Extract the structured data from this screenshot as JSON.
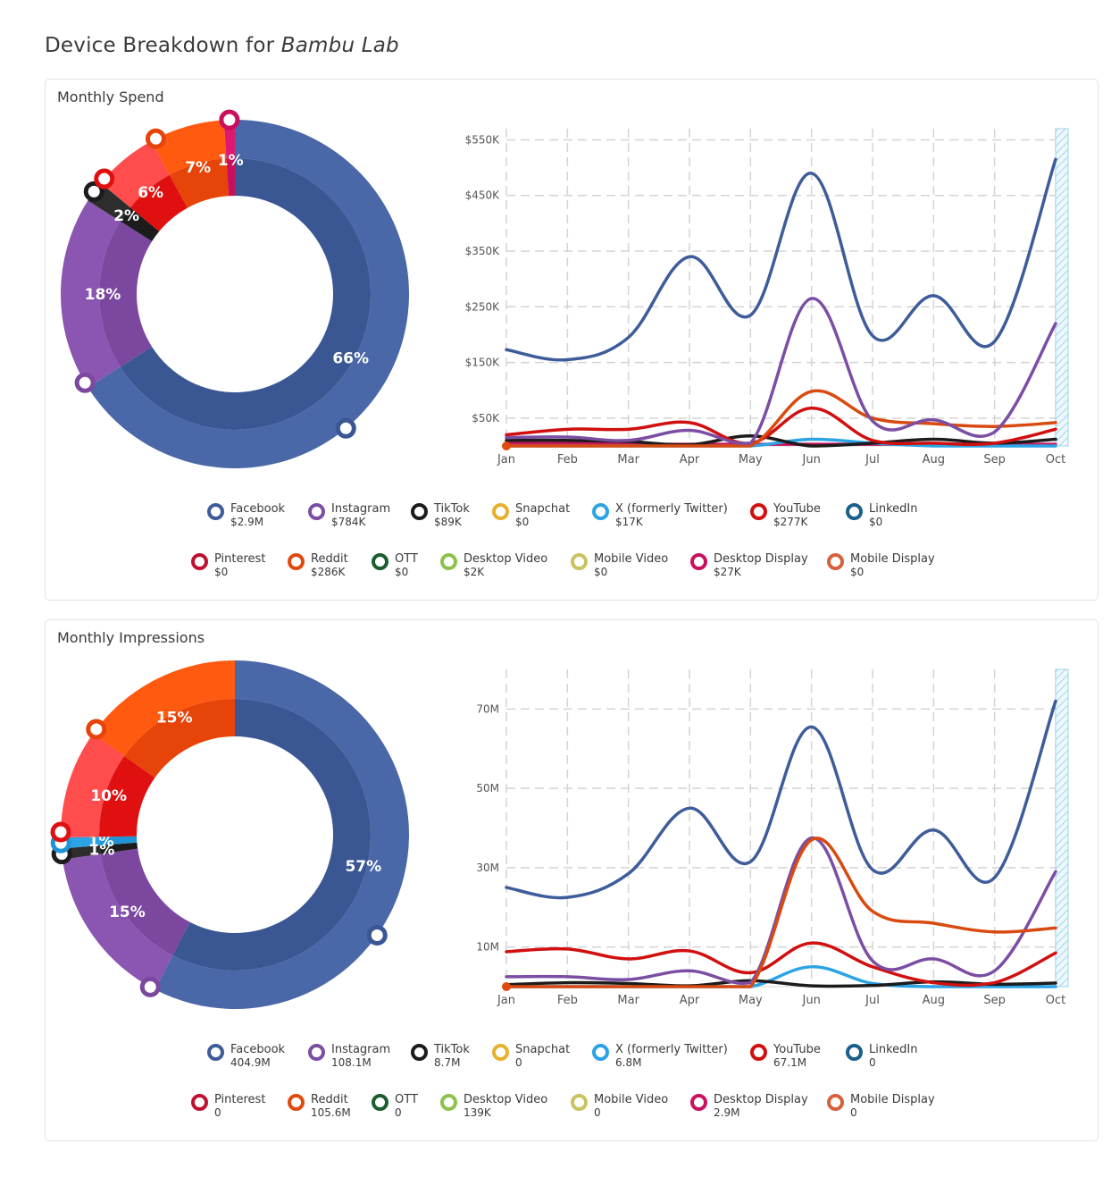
{
  "page": {
    "title_prefix": "Device Breakdown for",
    "brand": "Bambu Lab"
  },
  "months": [
    "Jan",
    "Feb",
    "Mar",
    "Apr",
    "May",
    "Jun",
    "Jul",
    "Aug",
    "Sep",
    "Oct"
  ],
  "channels": [
    {
      "key": "facebook",
      "name": "Facebook",
      "color": "#3e5c9a"
    },
    {
      "key": "instagram",
      "name": "Instagram",
      "color": "#7b4ea3"
    },
    {
      "key": "tiktok",
      "name": "TikTok",
      "color": "#1c1c1c"
    },
    {
      "key": "snapchat",
      "name": "Snapchat",
      "color": "#e7b12d"
    },
    {
      "key": "twitter",
      "name": "X (formerly Twitter)",
      "color": "#2ba3e4"
    },
    {
      "key": "youtube",
      "name": "YouTube",
      "color": "#d10f0f"
    },
    {
      "key": "linkedin",
      "name": "LinkedIn",
      "color": "#1a5f8e"
    },
    {
      "key": "pinterest",
      "name": "Pinterest",
      "color": "#c01030"
    },
    {
      "key": "reddit",
      "name": "Reddit",
      "color": "#e04a0e"
    },
    {
      "key": "ott",
      "name": "OTT",
      "color": "#1a5e2e"
    },
    {
      "key": "desktop_video",
      "name": "Desktop Video",
      "color": "#8cc14c"
    },
    {
      "key": "mobile_video",
      "name": "Mobile Video",
      "color": "#c8c460"
    },
    {
      "key": "desktop_display",
      "name": "Desktop Display",
      "color": "#c9125e"
    },
    {
      "key": "mobile_display",
      "name": "Mobile Display",
      "color": "#d9603c"
    }
  ],
  "spend": {
    "title": "Monthly Spend",
    "legend_values": [
      "$2.9M",
      "$784K",
      "$89K",
      "$0",
      "$17K",
      "$277K",
      "$0",
      "$0",
      "$286K",
      "$0",
      "$2K",
      "$0",
      "$27K",
      "$0"
    ],
    "donut": [
      {
        "channel": "Facebook",
        "pct": 66,
        "label": "66%",
        "color": "#4a68a8",
        "inner_color": "#3a5794"
      },
      {
        "channel": "Instagram",
        "pct": 18,
        "label": "18%",
        "color": "#8b55b2",
        "inner_color": "#7b479f"
      },
      {
        "channel": "TikTok",
        "pct": 2,
        "label": "2%",
        "color": "#2d2d2d",
        "inner_color": "#1c1c1c"
      },
      {
        "channel": "YouTube",
        "pct": 6,
        "label": "6%",
        "color": "#ff4d4d",
        "inner_color": "#e01010"
      },
      {
        "channel": "Reddit",
        "pct": 7,
        "label": "7%",
        "color": "#ff5a10",
        "inner_color": "#e64408"
      },
      {
        "channel": "Desktop Display",
        "pct": 1,
        "label": "1%",
        "color": "#dd1a70",
        "inner_color": "#c70f5e"
      }
    ],
    "chart_data": {
      "type": "line",
      "title": "Monthly Spend",
      "categories": [
        "Jan",
        "Feb",
        "Mar",
        "Apr",
        "May",
        "Jun",
        "Jul",
        "Aug",
        "Sep",
        "Oct"
      ],
      "ylim": [
        0,
        570000
      ],
      "yticks": [
        50000,
        150000,
        250000,
        350000,
        450000,
        550000
      ],
      "ytick_labels": [
        "$50K",
        "$150K",
        "$250K",
        "$350K",
        "$450K",
        "$550K"
      ],
      "series": [
        {
          "name": "Facebook",
          "color": "#3e5c9a",
          "values": [
            173000,
            155000,
            195000,
            340000,
            235000,
            490000,
            198000,
            270000,
            188000,
            515000
          ]
        },
        {
          "name": "Instagram",
          "color": "#7b4ea3",
          "values": [
            15000,
            16000,
            10000,
            28000,
            5000,
            265000,
            45000,
            47000,
            25000,
            220000
          ]
        },
        {
          "name": "Reddit",
          "color": "#d94a10",
          "values": [
            0,
            0,
            0,
            0,
            0,
            98000,
            50000,
            40000,
            35000,
            42000
          ]
        },
        {
          "name": "YouTube",
          "color": "#d10f0f",
          "values": [
            20000,
            30000,
            30000,
            42000,
            5000,
            68000,
            10000,
            5000,
            5000,
            30000
          ]
        },
        {
          "name": "TikTok",
          "color": "#1c1c1c",
          "values": [
            10000,
            10000,
            8000,
            2000,
            18000,
            0,
            5000,
            12000,
            5000,
            12000
          ]
        },
        {
          "name": "X (formerly Twitter)",
          "color": "#2ba3e4",
          "values": [
            0,
            0,
            0,
            0,
            0,
            12000,
            5000,
            0,
            0,
            0
          ]
        },
        {
          "name": "Desktop Display",
          "color": "#c9125e",
          "values": [
            5000,
            5000,
            3000,
            3000,
            3000,
            3000,
            3000,
            3000,
            3000,
            3000
          ]
        }
      ]
    }
  },
  "impressions": {
    "title": "Monthly Impressions",
    "legend_values": [
      "404.9M",
      "108.1M",
      "8.7M",
      "0",
      "6.8M",
      "67.1M",
      "0",
      "0",
      "105.6M",
      "0",
      "139K",
      "0",
      "2.9M",
      "0"
    ],
    "donut": [
      {
        "channel": "Facebook",
        "pct": 57,
        "label": "57%",
        "color": "#4a68a8",
        "inner_color": "#3a5794"
      },
      {
        "channel": "Instagram",
        "pct": 15,
        "label": "15%",
        "color": "#8b55b2",
        "inner_color": "#7b479f"
      },
      {
        "channel": "TikTok",
        "pct": 1,
        "label": "1%",
        "color": "#2d2d2d",
        "inner_color": "#1c1c1c"
      },
      {
        "channel": "X (formerly Twitter)",
        "pct": 1,
        "label": "1%",
        "color": "#2ba3e4",
        "inner_color": "#2094d6"
      },
      {
        "channel": "YouTube",
        "pct": 10,
        "label": "10%",
        "color": "#ff4d4d",
        "inner_color": "#e01010"
      },
      {
        "channel": "Reddit",
        "pct": 15,
        "label": "15%",
        "color": "#ff5a10",
        "inner_color": "#e64408"
      }
    ],
    "chart_data": {
      "type": "line",
      "title": "Monthly Impressions",
      "categories": [
        "Jan",
        "Feb",
        "Mar",
        "Apr",
        "May",
        "Jun",
        "Jul",
        "Aug",
        "Sep",
        "Oct"
      ],
      "ylim": [
        0,
        80000000
      ],
      "yticks": [
        10000000,
        30000000,
        50000000,
        70000000
      ],
      "ytick_labels": [
        "10M",
        "30M",
        "50M",
        "70M"
      ],
      "series": [
        {
          "name": "Facebook",
          "color": "#3e5c9a",
          "values": [
            25000000,
            22500000,
            28500000,
            45000000,
            31500000,
            65500000,
            29500000,
            39500000,
            27500000,
            72000000
          ]
        },
        {
          "name": "Reddit",
          "color": "#d94a10",
          "values": [
            0,
            0,
            0,
            0,
            0,
            37000000,
            19000000,
            16000000,
            13800000,
            14800000
          ]
        },
        {
          "name": "Instagram",
          "color": "#7b4ea3",
          "values": [
            2500000,
            2500000,
            1800000,
            4000000,
            1000000,
            37500000,
            6500000,
            7000000,
            4000000,
            29000000
          ]
        },
        {
          "name": "YouTube",
          "color": "#d10f0f",
          "values": [
            8800000,
            9500000,
            7000000,
            9000000,
            3500000,
            11000000,
            5000000,
            1000000,
            1000000,
            8500000
          ]
        },
        {
          "name": "TikTok",
          "color": "#1c1c1c",
          "values": [
            500000,
            1000000,
            800000,
            200000,
            1500000,
            200000,
            300000,
            1200000,
            600000,
            900000
          ]
        },
        {
          "name": "X (formerly Twitter)",
          "color": "#2ba3e4",
          "values": [
            0,
            0,
            0,
            0,
            0,
            5000000,
            800000,
            0,
            0,
            0
          ]
        }
      ]
    }
  }
}
